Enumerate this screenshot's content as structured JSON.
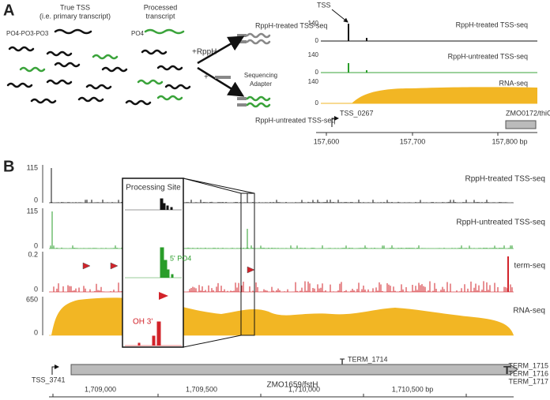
{
  "panel_a": {
    "letter": "A",
    "true_tss": "True TSS",
    "primary_note": "(i.e. primary transcript)",
    "ppp": "PO4-PO3-PO3",
    "processed": "Processed",
    "transcript": "transcript",
    "p": "PO4",
    "rpph": "+RppH",
    "plus": "+",
    "treated": "RppH-treated TSS-seq",
    "untreated": "RppH-untreated TSS-seq",
    "adapter1": "Sequencing",
    "adapter2": "Adapter",
    "tss": "TSS",
    "tracks": [
      {
        "label": "RppH-treated TSS-seq",
        "max": "140",
        "min": "0"
      },
      {
        "label": "RppH-untreated TSS-seq",
        "max": "140",
        "min": "0"
      },
      {
        "label": "RNA-seq",
        "max": "140",
        "min": "0"
      }
    ],
    "tss_name": "TSS_0267",
    "gene": "ZMO0172/thiC",
    "axis": [
      "157,600",
      "157,700",
      "157,800 bp"
    ]
  },
  "panel_b": {
    "letter": "B",
    "tracks": [
      {
        "label": "RppH-treated TSS-seq",
        "max": "115",
        "min": "0"
      },
      {
        "label": "RppH-untreated TSS-seq",
        "max": "115",
        "min": "0"
      },
      {
        "label": "term-seq",
        "max": "0.2",
        "min": "0"
      },
      {
        "label": "RNA-seq",
        "max": "650",
        "min": "0"
      }
    ],
    "inset_title": "Processing Site",
    "five_p": "5' PO4",
    "oh": "OH 3'",
    "tss_name": "TSS_3741",
    "gene": "ZMO1659/fstH",
    "term_mid": "TERM_1714",
    "terms": [
      "TERM_1715",
      "TERM_1716",
      "TERM_1717"
    ],
    "axis": [
      "1,709,000",
      "1,709,500",
      "1,710,000",
      "1,710,500 bp"
    ]
  }
}
